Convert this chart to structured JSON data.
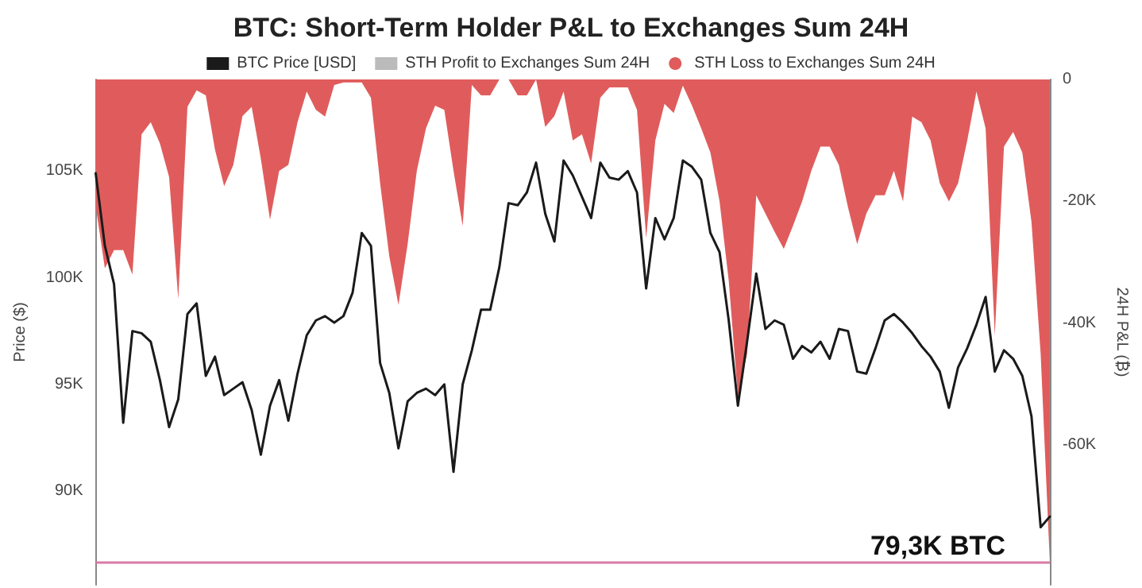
{
  "chart_data": {
    "type": "line",
    "title": "BTC: Short-Term Holder P&L to Exchanges Sum 24H",
    "ylabel": "Price ($)",
    "y2label": "24H P&L (₿)",
    "categories": [
      null,
      null,
      null,
      null,
      null,
      null,
      null,
      null,
      null,
      null,
      null,
      null,
      null,
      null,
      null,
      null,
      null,
      null,
      null,
      null,
      null,
      null,
      null,
      null,
      null,
      null,
      null,
      null,
      null,
      null,
      null,
      null,
      null,
      null,
      null,
      null,
      null,
      null,
      null,
      null,
      null,
      null,
      null,
      null,
      null,
      null,
      null,
      null,
      null,
      null,
      null,
      null,
      null,
      null,
      null,
      null,
      null,
      null,
      null,
      null,
      null,
      null,
      null,
      null,
      null,
      null,
      null,
      null,
      null,
      null,
      null,
      null,
      null,
      null,
      null,
      null,
      null,
      null,
      null,
      null,
      null,
      null,
      null,
      null,
      null,
      null,
      null,
      null,
      null,
      null,
      null,
      null,
      null,
      null,
      null,
      null,
      null,
      null,
      null,
      null,
      null,
      null,
      null,
      null,
      null
    ],
    "series": [
      {
        "name": "BTC Price [USD]",
        "type": "line",
        "color": "#1a1a1a",
        "values": [
          104900,
          101500,
          99700,
          93200,
          97500,
          97400,
          97000,
          95200,
          93000,
          94300,
          98300,
          98800,
          95400,
          96300,
          94500,
          94800,
          95100,
          93800,
          91700,
          94000,
          95200,
          93300,
          95500,
          97300,
          98000,
          98200,
          97900,
          98200,
          99300,
          102100,
          101500,
          96000,
          94600,
          92000,
          94200,
          94600,
          94800,
          94500,
          95000,
          90900,
          95000,
          96600,
          98500,
          98500,
          100500,
          103500,
          103400,
          104000,
          105400,
          103000,
          101700,
          105500,
          104800,
          103800,
          102800,
          105400,
          104700,
          104600,
          105000,
          104000,
          99500,
          102800,
          101800,
          102800,
          105500,
          105200,
          104600,
          102100,
          101200,
          98000,
          94000,
          97000,
          100200,
          97600,
          98000,
          97800,
          96200,
          96800,
          96500,
          97000,
          96200,
          97600,
          97500,
          95600,
          95500,
          96700,
          98000,
          98300,
          97900,
          97400,
          96800,
          96300,
          95600,
          93900,
          95800,
          96700,
          97800,
          99100,
          95600,
          96600,
          96200,
          95400,
          93500,
          88300,
          88800
        ]
      },
      {
        "name": "STH Profit to Exchanges Sum 24H",
        "type": "line",
        "color": "#bbbbbb",
        "axis": "y2",
        "values": [
          null,
          null,
          null,
          null,
          null,
          null,
          null,
          null,
          null,
          null,
          null,
          null,
          null,
          null,
          null,
          null,
          null,
          null,
          null,
          null,
          null,
          null,
          null,
          null,
          null,
          null,
          null,
          null,
          null,
          null,
          null,
          null,
          null,
          null,
          null,
          null,
          null,
          null,
          null,
          null,
          null,
          null,
          null,
          null,
          null,
          null,
          null,
          null,
          null,
          null,
          null,
          null,
          null,
          null,
          null,
          null,
          null,
          null,
          null,
          null,
          null,
          null,
          null,
          null,
          null,
          null,
          null,
          null,
          null,
          null,
          null,
          null,
          null,
          null,
          null,
          null,
          null,
          null,
          null,
          null,
          null,
          null,
          null,
          null,
          null,
          null,
          null,
          null,
          null,
          null,
          null,
          null,
          null,
          null,
          null,
          null,
          null,
          null,
          null,
          null,
          null,
          null,
          null,
          null,
          null
        ]
      },
      {
        "name": "STH Loss to Exchanges Sum 24H",
        "type": "area",
        "color": "#e05c5c",
        "axis": "y2",
        "values": [
          -20800,
          -31000,
          -28000,
          -28000,
          -32000,
          -9000,
          -7000,
          -10500,
          -16000,
          -36000,
          -4500,
          -1800,
          -2600,
          -11500,
          -17500,
          -14000,
          -6000,
          -4500,
          -13000,
          -23000,
          -15000,
          -14000,
          -7000,
          -2000,
          -5000,
          -6100,
          -900,
          -500,
          -500,
          -500,
          -3000,
          -17000,
          -29000,
          -37000,
          -27000,
          -15000,
          -8000,
          -4300,
          -5000,
          -15000,
          -24000,
          -900,
          -2600,
          -2600,
          0,
          0,
          -2600,
          -2600,
          0,
          -7800,
          -6000,
          -2000,
          -10000,
          -9000,
          -13800,
          -3000,
          -1300,
          -1300,
          -1300,
          -5000,
          -26000,
          -10000,
          -4000,
          -5500,
          -1000,
          -4300,
          -8000,
          -12000,
          -20000,
          -33000,
          -52000,
          -45000,
          -19000,
          -22000,
          -25000,
          -27800,
          -24000,
          -20000,
          -15000,
          -11000,
          -11000,
          -14000,
          -21000,
          -27000,
          -22000,
          -19000,
          -19000,
          -15000,
          -20000,
          -6100,
          -7000,
          -10000,
          -17000,
          -20000,
          -17000,
          -10000,
          -2000,
          -8000,
          -42000,
          -11000,
          -8600,
          -12000,
          -23400,
          -45000,
          -79300
        ]
      }
    ],
    "ylim": [
      85600,
      109300
    ],
    "yticks": [
      {
        "value": 90000,
        "label": "90K"
      },
      {
        "value": 95000,
        "label": "95K"
      },
      {
        "value": 100000,
        "label": "100K"
      },
      {
        "value": 105000,
        "label": "105K"
      }
    ],
    "y2lim": [
      -82900,
      0
    ],
    "y2ticks": [
      {
        "value": -60000,
        "label": "-60K"
      },
      {
        "value": -40000,
        "label": "-40K"
      },
      {
        "value": -20000,
        "label": "-20K"
      },
      0
    ],
    "ref_lines": [
      {
        "axis": "y2",
        "value": -79300,
        "label": "79,3K BTC",
        "color": "#d87aa6"
      }
    ],
    "legend": "top",
    "grid": false,
    "marker": "none",
    "line_style": "solid",
    "tick_labels": "y"
  }
}
